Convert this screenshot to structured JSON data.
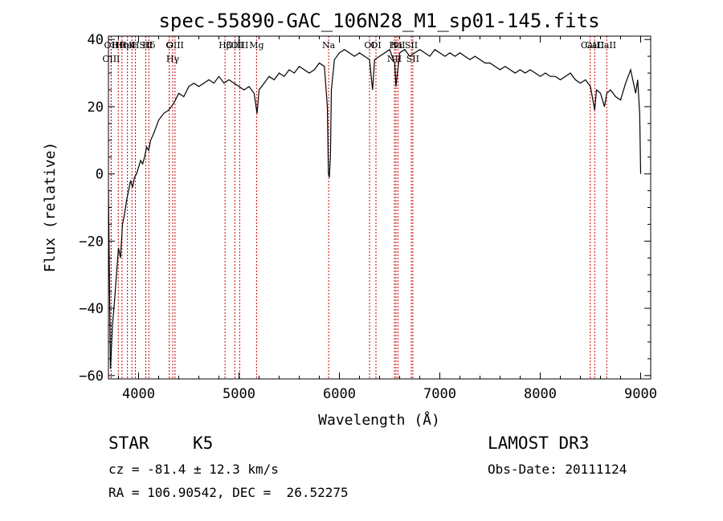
{
  "chart_data": {
    "type": "line",
    "title": "spec-55890-GAC_106N28_M1_sp01-145.fits",
    "xlabel": "Wavelength (Å)",
    "ylabel": "Flux (relative)",
    "xlim": [
      3700,
      9100
    ],
    "ylim": [
      -61,
      41
    ],
    "xticks": [
      4000,
      5000,
      6000,
      7000,
      8000,
      9000
    ],
    "yticks": [
      -60,
      -40,
      -20,
      0,
      20,
      40
    ],
    "series": [
      {
        "name": "flux",
        "x": [
          3700,
          3720,
          3740,
          3760,
          3780,
          3800,
          3820,
          3840,
          3860,
          3880,
          3900,
          3920,
          3940,
          3960,
          3980,
          4000,
          4020,
          4040,
          4060,
          4080,
          4100,
          4120,
          4150,
          4200,
          4250,
          4300,
          4350,
          4400,
          4450,
          4500,
          4550,
          4600,
          4650,
          4700,
          4750,
          4800,
          4850,
          4900,
          4950,
          5000,
          5050,
          5100,
          5150,
          5180,
          5200,
          5250,
          5300,
          5350,
          5400,
          5450,
          5500,
          5550,
          5600,
          5650,
          5700,
          5750,
          5800,
          5850,
          5880,
          5890,
          5900,
          5910,
          5920,
          5950,
          6000,
          6050,
          6100,
          6150,
          6200,
          6250,
          6300,
          6330,
          6350,
          6400,
          6450,
          6500,
          6550,
          6563,
          6600,
          6650,
          6700,
          6750,
          6800,
          6850,
          6900,
          6950,
          7000,
          7050,
          7100,
          7150,
          7200,
          7250,
          7300,
          7350,
          7400,
          7450,
          7500,
          7550,
          7600,
          7650,
          7700,
          7750,
          7800,
          7850,
          7900,
          7950,
          8000,
          8050,
          8100,
          8150,
          8200,
          8250,
          8300,
          8350,
          8400,
          8450,
          8500,
          8542,
          8560,
          8600,
          8640,
          8662,
          8700,
          8750,
          8800,
          8850,
          8900,
          8950,
          8970,
          8990,
          9000
        ],
        "y": [
          -5,
          -58,
          -45,
          -38,
          -30,
          -22,
          -25,
          -15,
          -12,
          -8,
          -5,
          -2,
          -4,
          -1,
          0,
          2,
          4,
          3,
          5,
          8,
          7,
          10,
          12,
          16,
          18,
          19,
          21,
          24,
          23,
          26,
          27,
          26,
          27,
          28,
          27,
          29,
          27,
          28,
          27,
          26,
          25,
          26,
          24,
          18,
          25,
          27,
          29,
          28,
          30,
          29,
          31,
          30,
          32,
          31,
          30,
          31,
          33,
          32,
          20,
          0,
          -1,
          5,
          25,
          34,
          36,
          37,
          36,
          35,
          36,
          35,
          34,
          25,
          34,
          35,
          36,
          37,
          33,
          26,
          36,
          37,
          35,
          36,
          37,
          36,
          35,
          37,
          36,
          35,
          36,
          35,
          36,
          35,
          34,
          35,
          34,
          33,
          33,
          32,
          31,
          32,
          31,
          30,
          31,
          30,
          31,
          30,
          29,
          30,
          29,
          29,
          28,
          29,
          30,
          28,
          27,
          28,
          26,
          19,
          25,
          24,
          20,
          24,
          25,
          23,
          22,
          27,
          31,
          24,
          28,
          18,
          0
        ],
        "labels_sampled": true
      }
    ],
    "annotations": [
      {
        "label": "Hθ",
        "x": 3798
      },
      {
        "label": "OII",
        "x": 3727
      },
      {
        "label": "OIII",
        "x": 3727
      },
      {
        "label": "K",
        "x": 3934
      },
      {
        "label": "HeI",
        "x": 3889
      },
      {
        "label": "Hη",
        "x": 3835
      },
      {
        "label": "SII",
        "x": 4072
      },
      {
        "label": "H",
        "x": 3968
      },
      {
        "label": "Hδ",
        "x": 4102
      },
      {
        "label": "OIII",
        "x": 4363
      },
      {
        "label": "Hγ",
        "x": 4340
      },
      {
        "label": "G",
        "x": 4305
      },
      {
        "label": "OIII",
        "x": 5007
      },
      {
        "label": "OIII",
        "x": 4959
      },
      {
        "label": "Hβ",
        "x": 4861
      },
      {
        "label": "Mg",
        "x": 5175
      },
      {
        "label": "Na",
        "x": 5893
      },
      {
        "label": "OI",
        "x": 6300
      },
      {
        "label": "OI",
        "x": 6364
      },
      {
        "label": "Hα",
        "x": 6563
      },
      {
        "label": "NII",
        "x": 6548
      },
      {
        "label": "NII",
        "x": 6583
      },
      {
        "label": "SII",
        "x": 6716
      },
      {
        "label": "SII",
        "x": 6731
      },
      {
        "label": "CaII",
        "x": 8542
      },
      {
        "label": "CaII",
        "x": 8498
      },
      {
        "label": "CaII",
        "x": 8662
      }
    ]
  },
  "info": {
    "class_label": "STAR",
    "subclass_label": "K5",
    "survey_label": "LAMOST DR3",
    "cz_text": "cz = -81.4 ± 12.3 km/s",
    "obs_date_text": "Obs-Date: 20111124",
    "coords_text": "RA = 106.90542, DEC =  26.52275"
  }
}
